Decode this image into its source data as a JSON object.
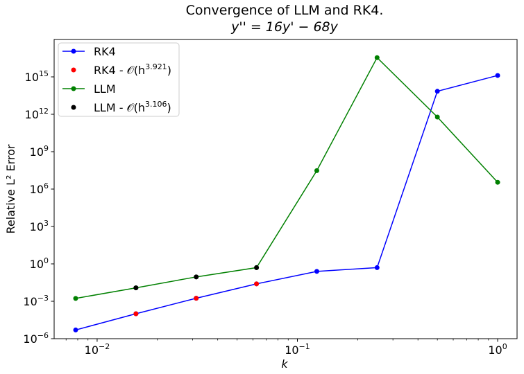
{
  "chart_data": {
    "type": "line",
    "title": "Convergence of LLM and RK4.",
    "subtitle": "y'' = 16y' − 68y",
    "xlabel": "k",
    "ylabel": "Relative L² Error",
    "xscale": "log",
    "yscale": "log",
    "xlim": [
      0.0061,
      1.25
    ],
    "ylim": [
      1e-06,
      1e+18
    ],
    "x_ticks": [
      {
        "value": 0.01,
        "base": "10",
        "exp": "−2"
      },
      {
        "value": 0.1,
        "base": "10",
        "exp": "−1"
      },
      {
        "value": 1,
        "base": "10",
        "exp": "0"
      }
    ],
    "y_ticks": [
      {
        "value": 1e-06,
        "base": "10",
        "exp": "−6"
      },
      {
        "value": 0.001,
        "base": "10",
        "exp": "−3"
      },
      {
        "value": 1,
        "base": "10",
        "exp": "0"
      },
      {
        "value": 1000.0,
        "base": "10",
        "exp": "3"
      },
      {
        "value": 1000000.0,
        "base": "10",
        "exp": "6"
      },
      {
        "value": 1000000000.0,
        "base": "10",
        "exp": "9"
      },
      {
        "value": 1000000000000.0,
        "base": "10",
        "exp": "12"
      },
      {
        "value": 1000000000000000.0,
        "base": "10",
        "exp": "15"
      }
    ],
    "grid": false,
    "legend_position": "top-left",
    "series": [
      {
        "name": "RK4",
        "color": "#0000ff",
        "style": "line-marker",
        "x": [
          0.0078125,
          0.015625,
          0.03125,
          0.0625,
          0.125,
          0.25,
          0.5,
          1.0
        ],
        "y": [
          5e-06,
          0.0001,
          0.00175,
          0.025,
          0.25,
          0.5,
          70000000000000.0,
          1300000000000000.0
        ]
      },
      {
        "name": "RK4 - O(h^3.921)",
        "color": "#ff0000",
        "style": "marker",
        "x": [
          0.015625,
          0.03125,
          0.0625
        ],
        "y": [
          0.0001,
          0.00175,
          0.025
        ]
      },
      {
        "name": "LLM",
        "color": "#008000",
        "style": "line-marker",
        "x": [
          0.0078125,
          0.015625,
          0.03125,
          0.0625,
          0.125,
          0.25,
          0.5,
          1.0
        ],
        "y": [
          0.0017,
          0.012,
          0.09,
          0.5,
          30000000.0,
          3.5e+16,
          600000000000.0,
          3500000.0
        ]
      },
      {
        "name": "LLM - O(h^3.106)",
        "color": "#000000",
        "style": "marker",
        "x": [
          0.015625,
          0.03125,
          0.0625
        ],
        "y": [
          0.012,
          0.09,
          0.5
        ]
      }
    ],
    "legend": [
      {
        "label": "RK4",
        "exp": ""
      },
      {
        "label": "RK4 - 𝒪(h",
        "exp": "3.921",
        "close": ")"
      },
      {
        "label": "LLM",
        "exp": ""
      },
      {
        "label": "LLM - 𝒪(h",
        "exp": "3.106",
        "close": ")"
      }
    ]
  }
}
